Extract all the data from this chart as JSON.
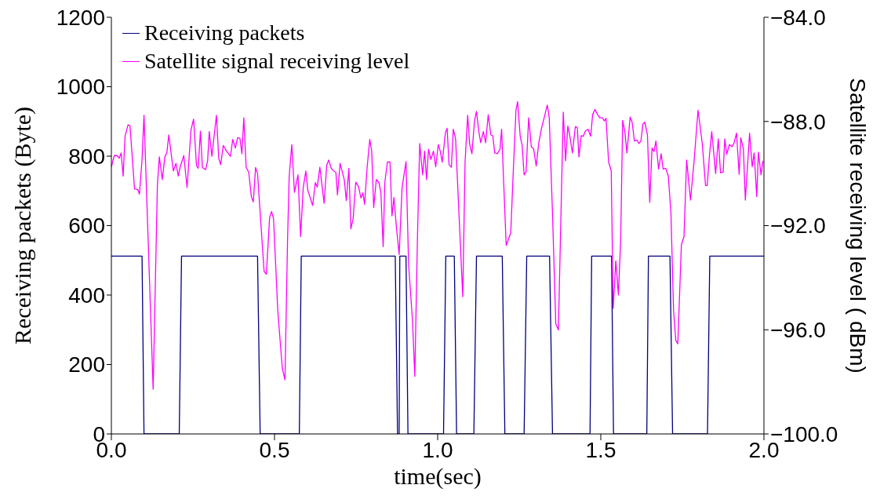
{
  "chart_data": {
    "type": "line",
    "xlabel": "time(sec)",
    "ylabel": "Receiving packets (Byte)",
    "y2label": "Satellite receiving level ( dBm)",
    "xlim": [
      0,
      2
    ],
    "xticks": [
      {
        "value": 0,
        "label": "0.0"
      },
      {
        "value": 0.5,
        "label": "0.5"
      },
      {
        "value": 1,
        "label": "1.0"
      },
      {
        "value": 1.5,
        "label": "1.5"
      },
      {
        "value": 2,
        "label": "2.0"
      }
    ],
    "ylim": [
      0,
      1200
    ],
    "yticks": [
      0,
      200,
      400,
      600,
      800,
      1000,
      1200
    ],
    "y2lim": [
      -100,
      -84
    ],
    "y2ticks": [
      {
        "value": -100,
        "label": "−100.0"
      },
      {
        "value": -96,
        "label": "−96.0"
      },
      {
        "value": -92,
        "label": "−92.0"
      },
      {
        "value": -88,
        "label": "−88.0"
      },
      {
        "value": -84,
        "label": "−84.0"
      }
    ],
    "grid": false,
    "legend": "top left",
    "marker": "none",
    "line_style": "solid",
    "series": [
      {
        "name": "Receiving packets",
        "color": "#000080",
        "x": [
          0,
          0.094,
          0.1,
          0.208,
          0.215,
          0.448,
          0.456,
          0.576,
          0.582,
          0.87,
          0.877,
          0.882,
          0.884,
          0.903,
          0.909,
          1.018,
          1.025,
          1.051,
          1.058,
          1.111,
          1.119,
          1.198,
          1.206,
          1.265,
          1.273,
          1.343,
          1.352,
          1.467,
          1.472,
          1.533,
          1.539,
          1.641,
          1.646,
          1.712,
          1.72,
          1.827,
          1.834,
          2
        ],
        "values": [
          512,
          512,
          0,
          0,
          512,
          512,
          0,
          0,
          512,
          512,
          0,
          0,
          512,
          512,
          0,
          0,
          512,
          512,
          0,
          0,
          512,
          512,
          0,
          0,
          512,
          512,
          0,
          0,
          512,
          512,
          0,
          0,
          512,
          512,
          0,
          0,
          512,
          512
        ]
      },
      {
        "name": "Satellite signal receiving level",
        "color": "#ff00ff",
        "axis": "y2",
        "x": [
          0,
          0.009,
          0.017,
          0.024,
          0.03,
          0.036,
          0.042,
          0.051,
          0.057,
          0.071,
          0.081,
          0.086,
          0.094,
          0.1,
          0.11,
          0.128,
          0.141,
          0.147,
          0.156,
          0.164,
          0.17,
          0.176,
          0.19,
          0.198,
          0.205,
          0.211,
          0.222,
          0.232,
          0.244,
          0.252,
          0.261,
          0.266,
          0.273,
          0.279,
          0.289,
          0.295,
          0.3,
          0.308,
          0.322,
          0.329,
          0.335,
          0.343,
          0.353,
          0.365,
          0.372,
          0.38,
          0.387,
          0.394,
          0.4,
          0.406,
          0.413,
          0.421,
          0.429,
          0.435,
          0.442,
          0.448,
          0.468,
          0.475,
          0.485,
          0.491,
          0.497,
          0.51,
          0.524,
          0.532,
          0.54,
          0.545,
          0.553,
          0.561,
          0.572,
          0.58,
          0.588,
          0.596,
          0.602,
          0.617,
          0.625,
          0.631,
          0.639,
          0.652,
          0.66,
          0.666,
          0.674,
          0.681,
          0.688,
          0.693,
          0.701,
          0.714,
          0.72,
          0.728,
          0.734,
          0.741,
          0.749,
          0.757,
          0.765,
          0.771,
          0.776,
          0.784,
          0.792,
          0.798,
          0.804,
          0.812,
          0.82,
          0.826,
          0.833,
          0.838,
          0.846,
          0.854,
          0.86,
          0.866,
          0.874,
          0.882,
          0.891,
          0.903,
          0.911,
          0.923,
          0.93,
          0.938,
          0.945,
          0.954,
          0.96,
          0.966,
          0.972,
          0.979,
          0.987,
          0.994,
          1.002,
          1.008,
          1.014,
          1.024,
          1.029,
          1.035,
          1.042,
          1.048,
          1.055,
          1.066,
          1.077,
          1.084,
          1.092,
          1.098,
          1.105,
          1.113,
          1.119,
          1.126,
          1.132,
          1.14,
          1.147,
          1.155,
          1.163,
          1.169,
          1.175,
          1.183,
          1.191,
          1.196,
          1.203,
          1.21,
          1.218,
          1.224,
          1.232,
          1.24,
          1.245,
          1.253,
          1.259,
          1.265,
          1.271,
          1.279,
          1.287,
          1.294,
          1.302,
          1.31,
          1.318,
          1.327,
          1.336,
          1.342,
          1.352,
          1.362,
          1.37,
          1.378,
          1.385,
          1.392,
          1.399,
          1.405,
          1.413,
          1.422,
          1.428,
          1.433,
          1.44,
          1.446,
          1.453,
          1.461,
          1.469,
          1.475,
          1.482,
          1.489,
          1.497,
          1.505,
          1.511,
          1.516,
          1.524,
          1.532,
          1.538,
          1.546,
          1.554,
          1.561,
          1.567,
          1.574,
          1.58,
          1.59,
          1.596,
          1.603,
          1.611,
          1.617,
          1.623,
          1.629,
          1.635,
          1.643,
          1.65,
          1.657,
          1.663,
          1.669,
          1.677,
          1.685,
          1.691,
          1.699,
          1.707,
          1.715,
          1.723,
          1.73,
          1.736,
          1.747,
          1.755,
          1.763,
          1.775,
          1.786,
          1.798,
          1.811,
          1.821,
          1.826,
          1.833,
          1.84,
          1.852,
          1.86,
          1.867,
          1.875,
          1.88,
          1.886,
          1.894,
          1.902,
          1.908,
          1.916,
          1.924,
          1.929,
          1.937,
          1.943,
          1.956,
          1.964,
          1.97,
          1.978,
          1.983,
          1.991,
          1.997
        ],
        "values": [
          -89.75,
          -89.31,
          -89.31,
          -89.41,
          -89.21,
          -90.1,
          -88.57,
          -88.13,
          -88.16,
          -90.59,
          -90.62,
          -90.79,
          -89.46,
          -87.76,
          -91.53,
          -98.28,
          -90.44,
          -89.36,
          -90.23,
          -89.36,
          -89.21,
          -88.52,
          -89.9,
          -89.61,
          -90.1,
          -89.74,
          -89.31,
          -90.54,
          -88.33,
          -87.91,
          -89.71,
          -89.8,
          -88.37,
          -89.77,
          -89.85,
          -89.51,
          -88.39,
          -89.34,
          -87.76,
          -89.41,
          -89.66,
          -88.92,
          -89.14,
          -89.34,
          -88.69,
          -89.02,
          -88.62,
          -88.65,
          -89.24,
          -87.86,
          -89.76,
          -89.95,
          -90.89,
          -91.09,
          -89.77,
          -90,
          -93.75,
          -93.87,
          -91.68,
          -91.46,
          -91.73,
          -95.27,
          -97.49,
          -97.92,
          -92.51,
          -90.1,
          -88.89,
          -90.72,
          -90.05,
          -92.42,
          -90.54,
          -89.9,
          -90.64,
          -91.23,
          -90.35,
          -90.52,
          -89.76,
          -91.14,
          -89.68,
          -89.48,
          -89.8,
          -89.9,
          -89.95,
          -90.82,
          -89.61,
          -90.25,
          -91.04,
          -89.8,
          -92.12,
          -91.73,
          -90.33,
          -90.49,
          -90.94,
          -90.74,
          -91.18,
          -89.74,
          -88.69,
          -89.16,
          -91.31,
          -90.23,
          -90.35,
          -90.74,
          -92.81,
          -90.35,
          -89.56,
          -89.56,
          -91.63,
          -90.92,
          -92.12,
          -93.11,
          -90.54,
          -89.54,
          -93.5,
          -95.67,
          -97.79,
          -92.52,
          -88.85,
          -90.05,
          -89.14,
          -90.23,
          -89.07,
          -89.46,
          -89.14,
          -89.74,
          -88.89,
          -89.14,
          -89.56,
          -88.42,
          -88.26,
          -89.66,
          -89.76,
          -88.3,
          -88.67,
          -91.73,
          -94.73,
          -89.56,
          -87.76,
          -88.87,
          -89.24,
          -87.98,
          -87.61,
          -88.37,
          -88.82,
          -88.39,
          -88.82,
          -87.74,
          -88.52,
          -88.55,
          -89.21,
          -89.24,
          -89.07,
          -88.3,
          -90.54,
          -92.76,
          -92.49,
          -92.27,
          -89.85,
          -87.57,
          -87.24,
          -88.57,
          -88.92,
          -90.05,
          -89.93,
          -87.86,
          -88.97,
          -89.05,
          -89.71,
          -88.82,
          -88.28,
          -87.83,
          -87.37,
          -87.86,
          -91.53,
          -95.77,
          -96.01,
          -91.53,
          -87.64,
          -89.51,
          -88.18,
          -88.55,
          -89.21,
          -88.2,
          -88.23,
          -89.36,
          -88.55,
          -88.57,
          -88.36,
          -88.3,
          -88.57,
          -87.74,
          -87.54,
          -87.71,
          -87.86,
          -87.86,
          -87.98,
          -87.88,
          -89.56,
          -89.9,
          -95.18,
          -93.35,
          -94.66,
          -92.52,
          -87.96,
          -88.42,
          -89.21,
          -87.83,
          -88.03,
          -88.75,
          -88.72,
          -88.85,
          -88.75,
          -88.1,
          -88.03,
          -88.52,
          -91.11,
          -89.02,
          -89.16,
          -88.75,
          -89.83,
          -89.24,
          -89.83,
          -89.8,
          -90.1,
          -91.53,
          -95.27,
          -96.41,
          -96.54,
          -92.73,
          -92.42,
          -89.48,
          -91.02,
          -89.51,
          -87.57,
          -88.85,
          -90.46,
          -90.46,
          -89.31,
          -88.39,
          -90,
          -88.67,
          -89.97,
          -89.95,
          -88.67,
          -89.26,
          -88.89,
          -88.97,
          -88.85,
          -88.45,
          -90.03,
          -88.62,
          -89.05,
          -91.02,
          -88.45,
          -89.74,
          -89.21,
          -90.89,
          -89.18,
          -90.05,
          -89.51
        ]
      }
    ]
  }
}
